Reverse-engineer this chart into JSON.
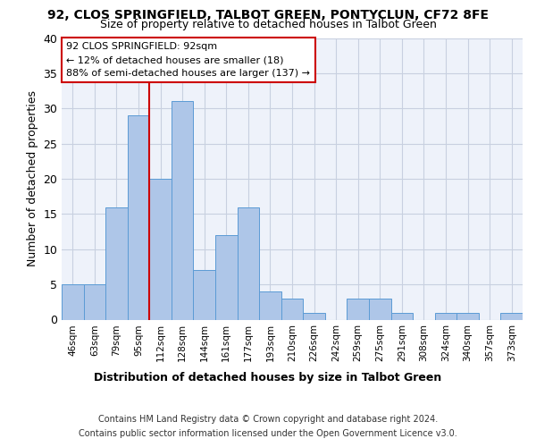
{
  "title1": "92, CLOS SPRINGFIELD, TALBOT GREEN, PONTYCLUN, CF72 8FE",
  "title2": "Size of property relative to detached houses in Talbot Green",
  "xlabel": "Distribution of detached houses by size in Talbot Green",
  "ylabel": "Number of detached properties",
  "footer1": "Contains HM Land Registry data © Crown copyright and database right 2024.",
  "footer2": "Contains public sector information licensed under the Open Government Licence v3.0.",
  "annotation_title": "92 CLOS SPRINGFIELD: 92sqm",
  "annotation_line1": "← 12% of detached houses are smaller (18)",
  "annotation_line2": "88% of semi-detached houses are larger (137) →",
  "bar_color": "#aec6e8",
  "bar_edge_color": "#5b9bd5",
  "vline_color": "#cc0000",
  "annotation_box_color": "#cc0000",
  "background_color": "#eef2fa",
  "categories": [
    "46sqm",
    "63sqm",
    "79sqm",
    "95sqm",
    "112sqm",
    "128sqm",
    "144sqm",
    "161sqm",
    "177sqm",
    "193sqm",
    "210sqm",
    "226sqm",
    "242sqm",
    "259sqm",
    "275sqm",
    "291sqm",
    "308sqm",
    "324sqm",
    "340sqm",
    "357sqm",
    "373sqm"
  ],
  "values": [
    5,
    5,
    16,
    29,
    20,
    31,
    7,
    12,
    16,
    4,
    3,
    1,
    0,
    3,
    3,
    1,
    0,
    1,
    1,
    0,
    1
  ],
  "vline_x": 3.5,
  "ylim": [
    0,
    40
  ],
  "yticks": [
    0,
    5,
    10,
    15,
    20,
    25,
    30,
    35,
    40
  ],
  "grid_color": "#c8d0e0",
  "title1_fontsize": 10,
  "title2_fontsize": 9,
  "ylabel_fontsize": 9,
  "xtick_fontsize": 7.5,
  "ytick_fontsize": 9,
  "annotation_fontsize": 8,
  "xlabel_fontsize": 9,
  "footer_fontsize": 7
}
